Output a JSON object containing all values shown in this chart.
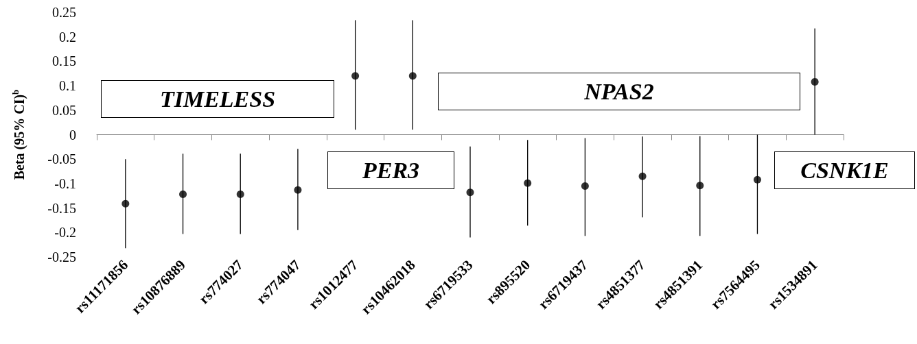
{
  "chart_data": {
    "type": "scatter",
    "ylabel": "Beta (95% CI)$^{b}$",
    "categories": [
      "rs11171856",
      "rs10876889",
      "rs774027",
      "rs774047",
      "rs1012477",
      "rs10462018",
      "rs6719533",
      "rs895520",
      "rs6719437",
      "rs4851377",
      "rs4851391",
      "rs7564495",
      "rs1534891"
    ],
    "values": [
      -0.141,
      -0.122,
      -0.122,
      -0.113,
      0.12,
      0.12,
      -0.118,
      -0.099,
      -0.105,
      -0.085,
      -0.104,
      -0.092,
      0.108
    ],
    "errors": [
      [
        -0.232,
        -0.05
      ],
      [
        -0.203,
        -0.039
      ],
      [
        -0.203,
        -0.039
      ],
      [
        -0.195,
        -0.029
      ],
      [
        0.01,
        0.234
      ],
      [
        0.01,
        0.234
      ],
      [
        -0.21,
        -0.024
      ],
      [
        -0.186,
        -0.011
      ],
      [
        -0.207,
        -0.007
      ],
      [
        -0.169,
        -0.004
      ],
      [
        -0.207,
        -0.003
      ],
      [
        -0.203,
        0.0
      ],
      [
        0.0,
        0.217
      ]
    ],
    "color": "#000000",
    "marker": "circle",
    "ylim": [
      -0.25,
      0.25
    ],
    "yticks": [
      -0.25,
      -0.2,
      -0.15,
      -0.1,
      -0.05,
      0,
      0.05,
      0.1,
      0.15,
      0.2,
      0.25
    ],
    "annotations": [
      "TIMELESS",
      "PER3",
      "NPAS2",
      "CSNK1E"
    ]
  }
}
